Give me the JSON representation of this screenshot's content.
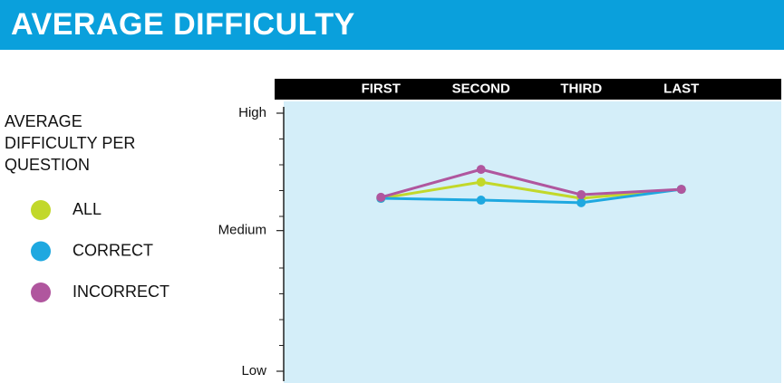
{
  "chart_data": {
    "type": "line",
    "title": "AVERAGE DIFFICULTY",
    "legend_title": "AVERAGE DIFFICULTY PER QUESTION",
    "categories": [
      "FIRST",
      "SECOND",
      "THIRD",
      "LAST"
    ],
    "series": [
      {
        "name": "ALL",
        "color": "#c2d82a",
        "values": [
          6.7,
          7.33,
          6.7,
          7.05
        ]
      },
      {
        "name": "CORRECT",
        "color": "#1ea8e0",
        "values": [
          6.7,
          6.63,
          6.53,
          7.05
        ]
      },
      {
        "name": "INCORRECT",
        "color": "#b0569e",
        "values": [
          6.74,
          7.82,
          6.84,
          7.05
        ]
      }
    ],
    "ylim": [
      0,
      10
    ],
    "yticks": [
      {
        "value": 0,
        "label": "Low"
      },
      {
        "value": 5.45,
        "label": "Medium"
      },
      {
        "value": 10,
        "label": "High"
      }
    ],
    "minor_yticks": [
      1,
      2,
      3,
      4,
      6,
      7,
      8,
      9
    ],
    "legend": "left"
  }
}
